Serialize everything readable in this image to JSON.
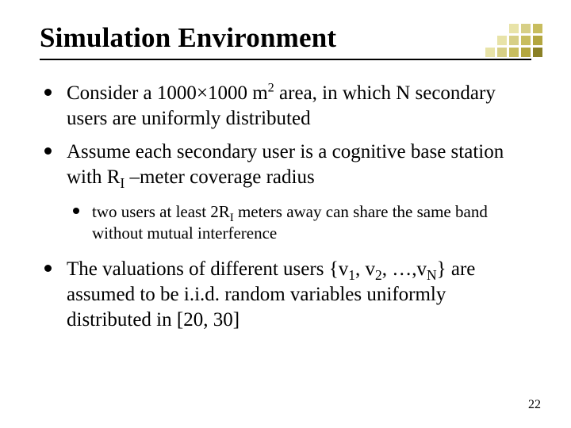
{
  "title": "Simulation Environment",
  "bullets": {
    "b1_pre": "Consider a 1000×1000 m",
    "b1_sup": "2",
    "b1_post": " area, in which N secondary users are uniformly distributed",
    "b2_pre": "Assume each secondary user is a cognitive base station with R",
    "b2_sub": "I",
    "b2_post": " –meter coverage radius",
    "b2a_pre": "two users at least 2R",
    "b2a_sub": "I",
    "b2a_post": " meters away can share the same band without mutual interference",
    "b3_pre": "The valuations of different users {v",
    "b3_s1": "1",
    "b3_m1": ", v",
    "b3_s2": "2",
    "b3_m2": ", …,v",
    "b3_s3": "N",
    "b3_post": "} are assumed to be i.i.d. random variables uniformly distributed in [20, 30]"
  },
  "page_number": "22",
  "decor_colors": [
    "#ffffff",
    "#ffffff",
    "#ffffff",
    "#e8e3a8",
    "#d7cf86",
    "#c8bd5e",
    "#ffffff",
    "#ffffff",
    "#e8e3a8",
    "#d7cf86",
    "#c8bd5e",
    "#b3a63f",
    "#ffffff",
    "#e8e3a8",
    "#d7cf86",
    "#c8bd5e",
    "#b3a63f",
    "#8a8026"
  ]
}
